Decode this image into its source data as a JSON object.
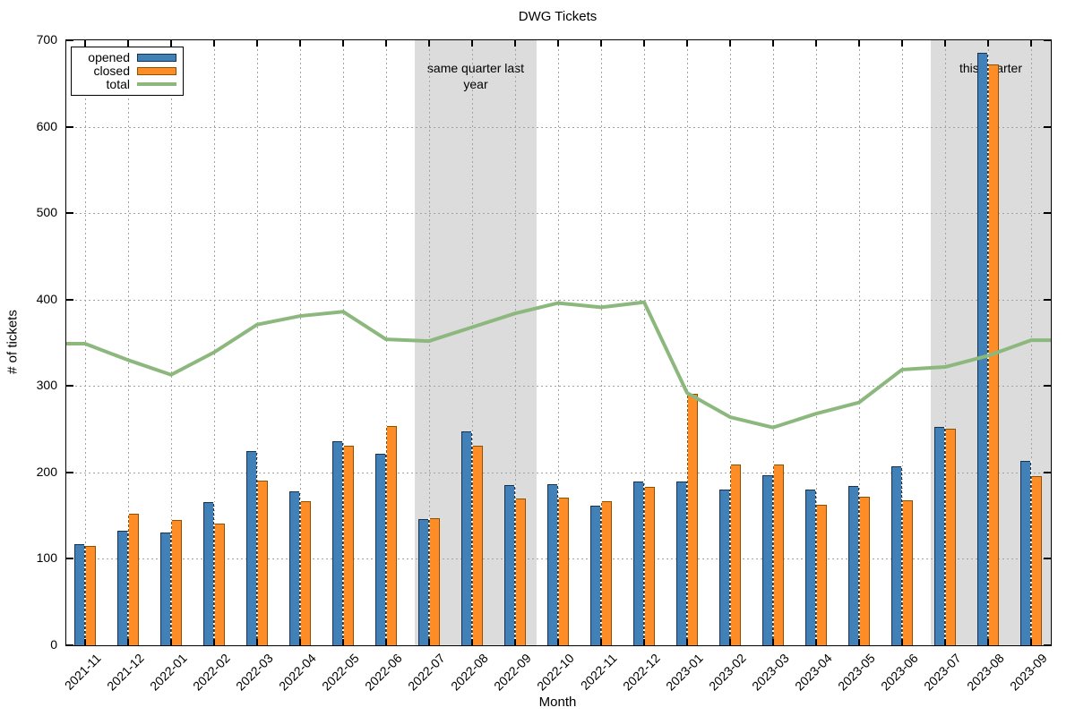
{
  "title": "DWG Tickets",
  "chart_data": {
    "type": "bar+line",
    "title": "DWG Tickets",
    "xlabel": "Month",
    "ylabel": "# of tickets",
    "ylim": [
      0,
      700
    ],
    "yticks": [
      0,
      100,
      200,
      300,
      400,
      500,
      600,
      700
    ],
    "grid": true,
    "grid_color": "#A3A3A3",
    "legend_position": "top-left",
    "categories": [
      "2021-11",
      "2021-12",
      "2022-01",
      "2022-02",
      "2022-03",
      "2022-04",
      "2022-05",
      "2022-06",
      "2022-07",
      "2022-08",
      "2022-09",
      "2022-10",
      "2022-11",
      "2022-12",
      "2023-01",
      "2023-02",
      "2023-03",
      "2023-04",
      "2023-05",
      "2023-06",
      "2023-07",
      "2023-08",
      "2023-09"
    ],
    "series": [
      {
        "name": "opened",
        "type": "bar",
        "color": "#4181B8",
        "border_color": "#16344F",
        "values": [
          117,
          133,
          130,
          166,
          225,
          178,
          236,
          222,
          146,
          247,
          185,
          186,
          162,
          189,
          189,
          180,
          197,
          180,
          184,
          207,
          253,
          685,
          213
        ]
      },
      {
        "name": "closed",
        "type": "bar",
        "color": "#FF8D27",
        "border_color": "#8A5200",
        "values": [
          115,
          152,
          145,
          141,
          191,
          167,
          231,
          254,
          147,
          231,
          170,
          171,
          167,
          183,
          291,
          209,
          209,
          163,
          172,
          168,
          251,
          672,
          196
        ]
      },
      {
        "name": "total",
        "type": "line",
        "color": "#8CB87E",
        "values": [
          349,
          330,
          313,
          339,
          371,
          381,
          386,
          354,
          352,
          368,
          384,
          396,
          391,
          397,
          292,
          264,
          252,
          268,
          281,
          319,
          322,
          335,
          353
        ]
      }
    ],
    "highlight_bands": [
      {
        "label": "same quarter last year",
        "from_month": "2022-07",
        "to_month": "2022-09",
        "color": "#DCDCDC"
      },
      {
        "label": "this quarter",
        "from_month": "2023-07",
        "to_month": "2023-09",
        "color": "#DCDCDC"
      }
    ]
  }
}
